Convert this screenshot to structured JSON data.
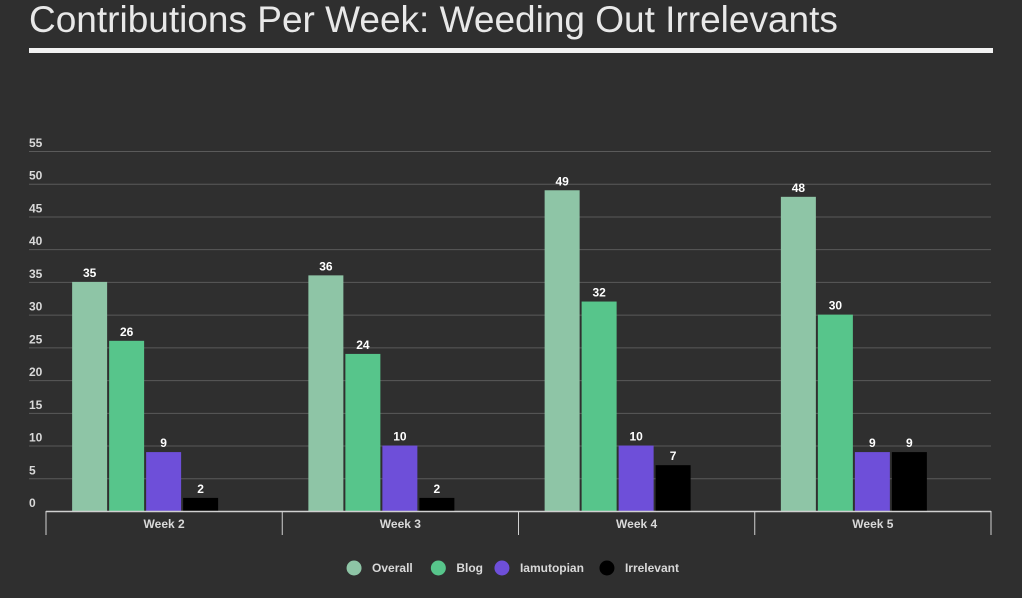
{
  "page": {
    "title": "Contributions Per Week: Weeding Out Irrelevants"
  },
  "chart_data": {
    "type": "bar",
    "title": "Contributions Per Week: Weeding Out Irrelevants",
    "xlabel": "",
    "ylabel": "",
    "categories": [
      "Week 2",
      "Week 3",
      "Week 4",
      "Week 5"
    ],
    "series": [
      {
        "name": "Overall",
        "color": "#8ec5a6",
        "values": [
          35,
          36,
          49,
          48
        ]
      },
      {
        "name": "Blog",
        "color": "#57c58b",
        "values": [
          26,
          24,
          32,
          30
        ]
      },
      {
        "name": "Iamutopian",
        "color": "#6e4fd9",
        "values": [
          9,
          10,
          10,
          9
        ]
      },
      {
        "name": "Irrelevant",
        "color": "#000000",
        "values": [
          2,
          2,
          7,
          9
        ]
      }
    ],
    "ylim": [
      0,
      55
    ],
    "yticks": [
      0,
      5,
      10,
      15,
      20,
      25,
      30,
      35,
      40,
      45,
      50,
      55
    ],
    "grid": true,
    "legend": "bottom-center",
    "data_labels": true
  }
}
